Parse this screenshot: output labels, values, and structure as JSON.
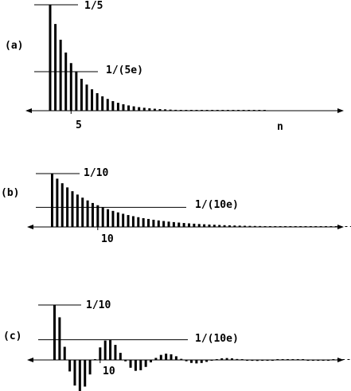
{
  "chart_data": [
    {
      "type": "bar",
      "panel_label": "(a)",
      "x_ticks": [
        {
          "n": 5,
          "label": "5"
        }
      ],
      "x_axis_label": "n",
      "reference_lines": [
        {
          "value": 0.2,
          "label": "1/5"
        },
        {
          "value": 0.0736,
          "label": "1/(5e)"
        }
      ],
      "x": [
        1,
        2,
        3,
        4,
        5,
        6,
        7,
        8,
        9,
        10,
        11,
        12,
        13,
        14,
        15,
        16,
        17,
        18,
        19,
        20,
        21,
        22,
        23,
        24,
        25,
        26,
        27,
        28,
        29,
        30,
        31,
        32,
        33,
        34,
        35,
        36,
        37,
        38,
        39,
        40,
        41,
        42
      ],
      "values": [
        0.2,
        0.1637,
        0.134,
        0.1098,
        0.0899,
        0.0736,
        0.0602,
        0.0493,
        0.0404,
        0.0331,
        0.0271,
        0.0222,
        0.0181,
        0.0149,
        0.0122,
        0.0099,
        0.0082,
        0.0067,
        0.0055,
        0.0045,
        0.0037,
        0.003,
        0.0025,
        0.002,
        0.0016,
        0.0013,
        0.0011,
        0.0009,
        0.0007,
        0.0006,
        0.0005,
        0.0004,
        0.0003,
        0.0003,
        0.0002,
        0.0002,
        0.0002,
        0.0001,
        0.0001,
        0.0001,
        0.0001,
        0.0001
      ]
    },
    {
      "type": "bar",
      "panel_label": "(b)",
      "x_ticks": [
        {
          "n": 10,
          "label": "10"
        }
      ],
      "reference_lines": [
        {
          "value": 0.1,
          "label": "1/10"
        },
        {
          "value": 0.0368,
          "label": "1/(10e)"
        }
      ],
      "x": [
        1,
        2,
        3,
        4,
        5,
        6,
        7,
        8,
        9,
        10,
        11,
        12,
        13,
        14,
        15,
        16,
        17,
        18,
        19,
        20,
        21,
        22,
        23,
        24,
        25,
        26,
        27,
        28,
        29,
        30,
        31,
        32,
        33,
        34,
        35,
        36,
        37,
        38,
        39,
        40,
        41,
        42,
        43,
        44,
        45,
        46,
        47,
        48,
        49,
        50,
        51,
        52,
        53,
        54,
        55,
        56,
        57,
        58,
        59,
        60,
        61,
        62,
        63,
        64,
        65,
        66,
        67,
        68,
        69,
        70,
        71,
        72,
        73,
        74,
        75,
        76,
        77,
        78,
        79,
        80,
        81,
        82,
        83,
        84
      ],
      "values": [
        0.1,
        0.0905,
        0.0819,
        0.0741,
        0.067,
        0.0607,
        0.0549,
        0.0497,
        0.0449,
        0.0407,
        0.0368,
        0.0333,
        0.0301,
        0.0273,
        0.0247,
        0.0223,
        0.0202,
        0.0183,
        0.0165,
        0.015,
        0.0135,
        0.0122,
        0.0111,
        0.01,
        0.0091,
        0.0082,
        0.0074,
        0.0067,
        0.0061,
        0.0055,
        0.005,
        0.0045,
        0.0041,
        0.0037,
        0.0033,
        0.003,
        0.0027,
        0.0025,
        0.0022,
        0.002,
        0.0018,
        0.0017,
        0.0015,
        0.0014,
        0.0012,
        0.0011,
        0.001,
        0.0009,
        0.0008,
        0.0007,
        0.0007,
        0.0006,
        0.0005,
        0.0005,
        0.0005,
        0.0004,
        0.0004,
        0.0003,
        0.0003,
        0.0003,
        0.0002,
        0.0002,
        0.0002,
        0.0002,
        0.0002,
        0.0002,
        0.0001,
        0.0001,
        0.0001,
        0.0001,
        0.0001,
        0.0001,
        0.0001,
        0.0001,
        0.0001,
        0.0001,
        0.0001,
        0.0001,
        0.0001,
        0.0001,
        0.0001,
        0.0001,
        0.0001,
        0.0001
      ]
    },
    {
      "type": "bar",
      "panel_label": "(c)",
      "x_ticks": [
        {
          "n": 10,
          "label": "10"
        }
      ],
      "reference_lines": [
        {
          "value": 0.1,
          "label": "1/10"
        },
        {
          "value": 0.0368,
          "label": "1/(10e)"
        }
      ],
      "x": [
        1,
        2,
        3,
        4,
        5,
        6,
        7,
        8,
        9,
        10,
        11,
        12,
        13,
        14,
        15,
        16,
        17,
        18,
        19,
        20,
        21,
        22,
        23,
        24,
        25,
        26,
        27,
        28,
        29,
        30,
        31,
        32,
        33,
        34,
        35,
        36,
        37,
        38,
        39,
        40,
        41,
        42,
        43,
        44,
        45,
        46,
        47,
        48,
        49,
        50,
        51,
        52,
        53,
        54,
        55,
        56,
        57,
        58,
        59,
        60,
        61,
        62,
        63,
        64,
        65,
        66,
        67,
        68,
        69,
        70,
        71,
        72,
        73,
        74,
        75,
        76,
        77,
        78,
        79,
        80,
        81,
        82,
        83,
        84
      ],
      "values": [
        0.1,
        0.0776,
        0.0239,
        -0.0209,
        -0.0466,
        -0.0571,
        -0.0485,
        -0.0264,
        0.0004,
        0.0228,
        0.0353,
        0.0361,
        0.0274,
        0.0129,
        -0.0025,
        -0.0142,
        -0.0198,
        -0.0187,
        -0.0127,
        -0.0044,
        0.0037,
        0.0092,
        0.0114,
        0.0103,
        0.0067,
        0.002,
        -0.0024,
        -0.0054,
        -0.0063,
        -0.0055,
        -0.0035,
        -0.0009,
        0.0014,
        0.003,
        0.0034,
        0.0029,
        0.0017,
        0.0003,
        -0.0008,
        -0.0016,
        -0.0018,
        -0.0015,
        -0.0009,
        -0.0001,
        0.0005,
        0.0009,
        0.001,
        0.0008,
        0.0004,
        0.0,
        -0.0003,
        -0.0005,
        -0.0005,
        -0.0004,
        -0.0002,
        0.0,
        0.0002,
        0.0002,
        0.0002,
        0.0002,
        0.0001,
        0.0,
        -0.0001,
        -0.0001,
        -0.0001,
        -0.0001,
        0.0,
        0.0,
        0.0001,
        0.0001,
        0.0001,
        0.0,
        0.0,
        0.0,
        0.0,
        0.0,
        0.0,
        0.0,
        0.0,
        0.0,
        0.0,
        0.0,
        0.0,
        0.0
      ]
    }
  ]
}
